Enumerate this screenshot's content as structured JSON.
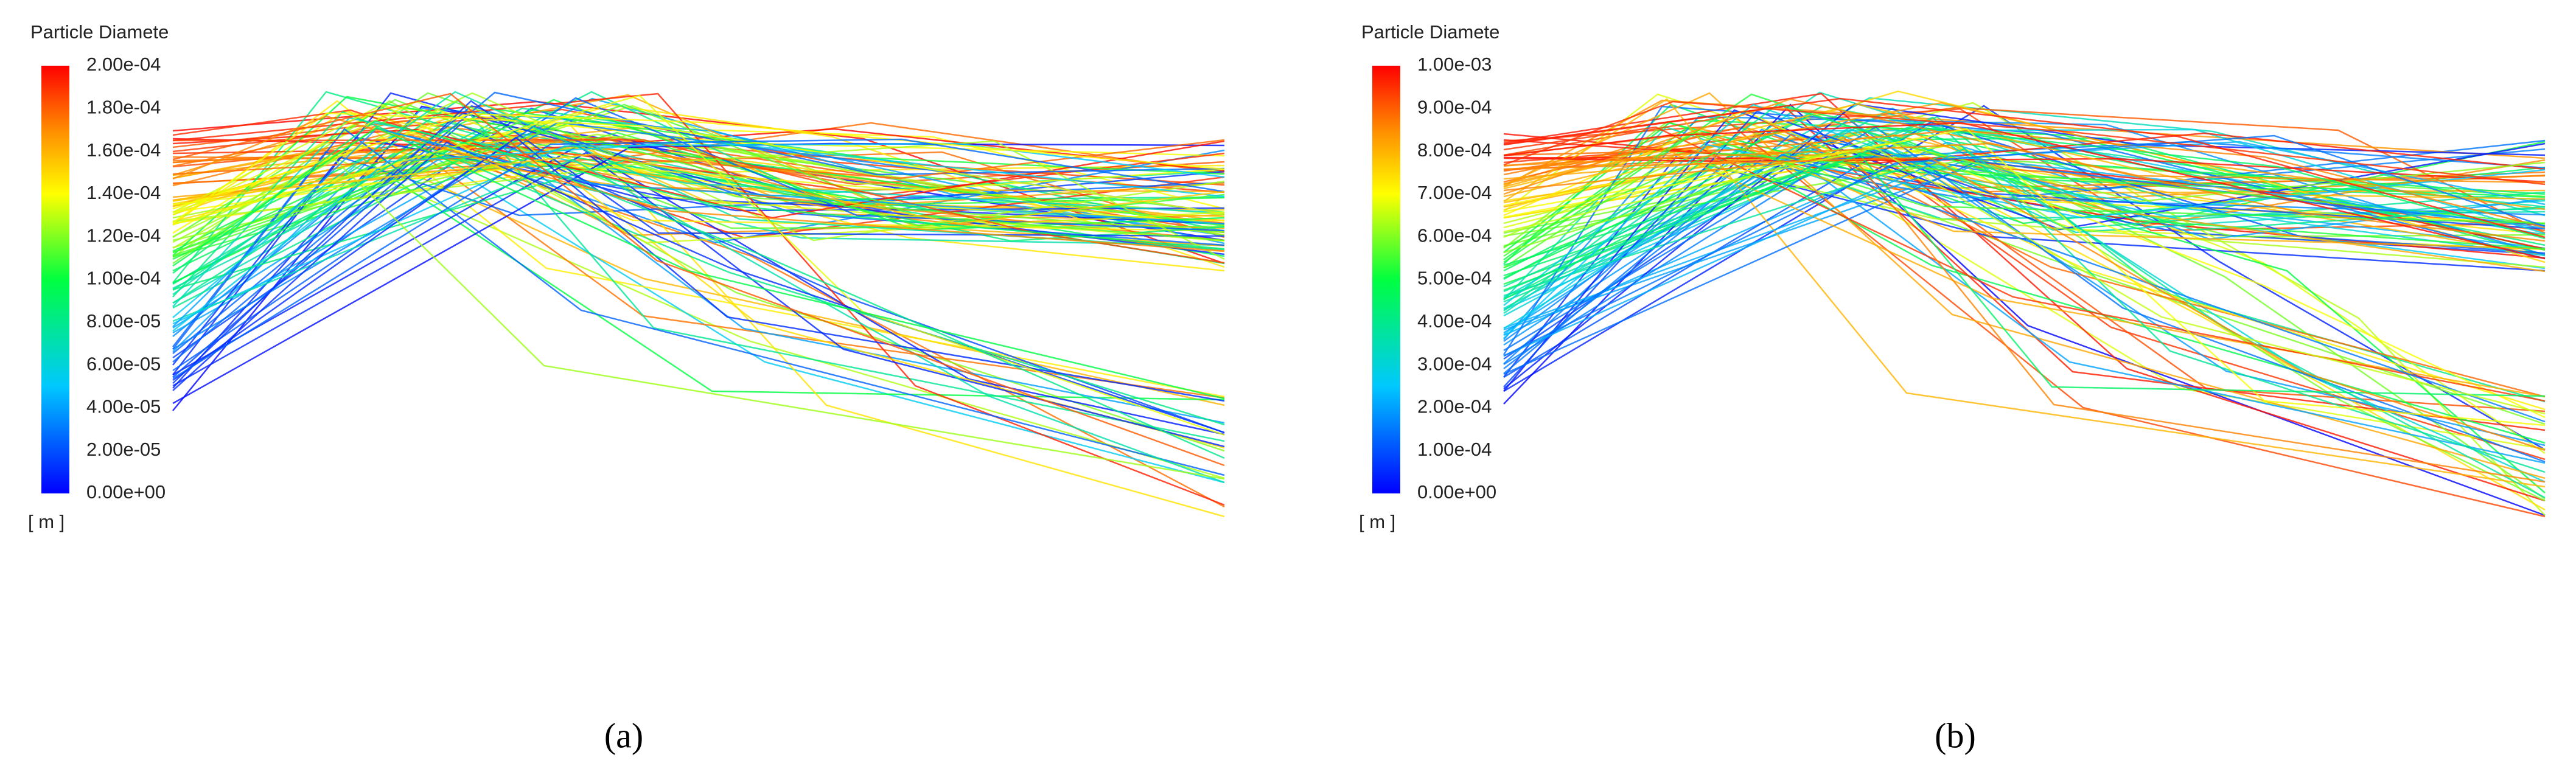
{
  "panels": [
    {
      "legend": {
        "title": "Particle Diamete",
        "ticks": [
          "2.00e-04",
          "1.80e-04",
          "1.60e-04",
          "1.40e-04",
          "1.20e-04",
          "1.00e-04",
          "8.00e-05",
          "6.00e-05",
          "4.00e-05",
          "2.00e-05",
          "0.00e+00"
        ],
        "unit": "[ m ]"
      },
      "caption": "(a)"
    },
    {
      "legend": {
        "title": "Particle Diamete",
        "ticks": [
          "1.00e-03",
          "9.00e-04",
          "8.00e-04",
          "7.00e-04",
          "6.00e-04",
          "5.00e-04",
          "4.00e-04",
          "3.00e-04",
          "2.00e-04",
          "1.00e-04",
          "0.00e+00"
        ],
        "unit": "[ m ]"
      },
      "caption": "(b)"
    }
  ]
}
